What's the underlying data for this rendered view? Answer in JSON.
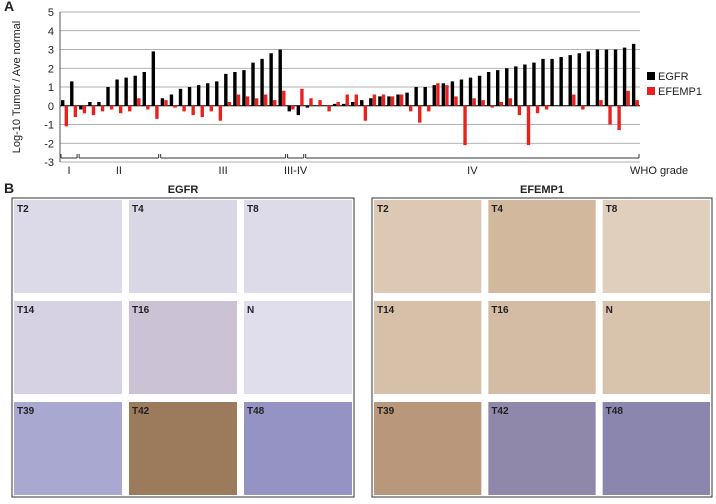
{
  "panel_labels": [
    "A",
    "B"
  ],
  "chart_data": {
    "type": "bar",
    "y_label": "Log-10 Tumor / Ave normal",
    "x_label": "WHO grade",
    "groups": [
      "I",
      "II",
      "III",
      "III-IV",
      "IV"
    ],
    "categories": [
      null,
      null,
      null,
      null,
      null,
      null,
      null,
      null,
      null,
      null,
      null,
      null,
      null,
      null,
      null,
      null,
      null,
      null,
      null,
      null,
      null,
      null,
      null,
      null,
      null,
      null,
      null,
      null,
      null,
      null,
      null,
      null,
      null,
      null,
      null,
      null,
      null,
      null,
      null,
      null,
      null,
      null,
      null,
      null,
      null,
      null,
      null,
      null,
      null,
      null,
      null,
      null,
      null,
      null,
      null,
      null,
      null,
      null,
      null,
      null,
      null,
      null,
      null,
      null
    ],
    "series": [
      {
        "name": "EGFR",
        "color": "#000000",
        "values": [
          0.3,
          1.3,
          -0.2,
          0.2,
          0.2,
          1.0,
          1.4,
          1.5,
          1.6,
          1.8,
          2.9,
          0.4,
          0.6,
          0.9,
          1.0,
          1.1,
          1.2,
          1.3,
          1.7,
          1.8,
          1.9,
          2.3,
          2.5,
          2.8,
          3.0,
          -0.3,
          -0.5,
          -0.1,
          0.0,
          0.0,
          0.1,
          0.1,
          0.2,
          0.3,
          0.4,
          0.5,
          0.5,
          0.6,
          0.7,
          1.0,
          1.0,
          1.1,
          1.2,
          1.3,
          1.4,
          1.5,
          1.6,
          1.8,
          1.9,
          2.0,
          2.1,
          2.2,
          2.3,
          2.5,
          2.5,
          2.6,
          2.7,
          2.8,
          2.9,
          3.0,
          3.0,
          3.0,
          3.1,
          3.3
        ]
      },
      {
        "name": "EFEMP1",
        "color": "#e8231f",
        "values": [
          -1.1,
          -0.6,
          -0.4,
          -0.5,
          -0.3,
          -0.2,
          -0.4,
          -0.3,
          0.4,
          -0.2,
          -0.7,
          0.3,
          -0.1,
          -0.3,
          -0.5,
          -0.6,
          -0.3,
          -0.8,
          0.2,
          0.6,
          0.5,
          0.4,
          0.6,
          0.3,
          0.8,
          -0.2,
          0.9,
          0.4,
          0.3,
          -0.3,
          0.2,
          0.6,
          0.6,
          -0.8,
          0.6,
          0.6,
          0.5,
          0.6,
          -0.3,
          -0.9,
          -0.3,
          1.2,
          1.1,
          0.5,
          -2.1,
          0.4,
          0.3,
          -0.1,
          0.2,
          0.4,
          -0.5,
          -2.1,
          -0.4,
          -0.2,
          0.0,
          0.0,
          0.6,
          -0.2,
          0.0,
          0.3,
          -1.0,
          -1.3,
          0.8,
          0.3
        ]
      }
    ],
    "ylim": [
      -3,
      5
    ],
    "yticks": [
      -3,
      -2,
      -1,
      0,
      1,
      2,
      3,
      4,
      5
    ],
    "grid": true,
    "legend": "right"
  },
  "panel_b": [
    {
      "title": "EGFR",
      "tiles": [
        "T2",
        "T4",
        "T8",
        "T14",
        "T16",
        "N",
        "T39",
        "T42",
        "T48"
      ]
    },
    {
      "title": "EFEMP1",
      "tiles": [
        "T2",
        "T4",
        "T8",
        "T14",
        "T16",
        "N",
        "T39",
        "T42",
        "T48"
      ]
    }
  ]
}
